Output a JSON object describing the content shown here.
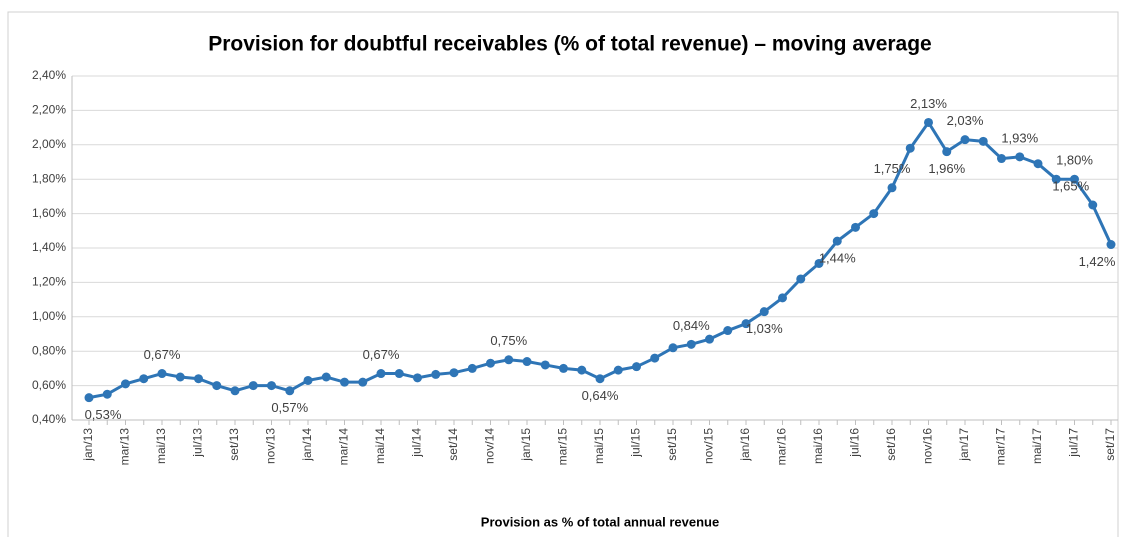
{
  "chart_data": {
    "type": "line",
    "title": "Provision for doubtful receivables (% of total revenue) – moving average",
    "x_label": "Provision as % of total annual revenue",
    "categories": [
      "jan/13",
      null,
      "mar/13",
      null,
      "mai/13",
      null,
      "jul/13",
      null,
      "set/13",
      null,
      "nov/13",
      null,
      "jan/14",
      null,
      "mar/14",
      null,
      "mai/14",
      null,
      "jul/14",
      null,
      "set/14",
      null,
      "nov/14",
      null,
      "jan/15",
      null,
      "mar/15",
      null,
      "mai/15",
      null,
      "jul/15",
      null,
      "set/15",
      null,
      "nov/15",
      null,
      "jan/16",
      null,
      "mar/16",
      null,
      "mai/16",
      null,
      "jul/16",
      null,
      "set/16",
      null,
      "nov/16",
      null,
      "jan/17",
      null,
      "mar/17",
      null,
      "mai/17",
      null,
      "jul/17",
      null,
      "set/17"
    ],
    "series": [
      {
        "name": "Provision",
        "color": "#2e75b6",
        "values": [
          0.53,
          0.55,
          0.61,
          0.64,
          0.67,
          0.65,
          0.64,
          0.6,
          0.57,
          0.6,
          0.6,
          0.57,
          0.63,
          0.65,
          0.62,
          0.62,
          0.67,
          0.67,
          0.645,
          0.665,
          0.675,
          0.7,
          0.73,
          0.75,
          0.74,
          0.72,
          0.7,
          0.69,
          0.64,
          0.69,
          0.71,
          0.76,
          0.82,
          0.84,
          0.87,
          0.92,
          0.96,
          1.03,
          1.11,
          1.22,
          1.31,
          1.44,
          1.52,
          1.6,
          1.75,
          1.98,
          2.13,
          1.96,
          2.03,
          2.02,
          1.92,
          1.93,
          1.89,
          1.8,
          1.8,
          1.65,
          1.42
        ],
        "value_labels": [
          "0,53%",
          null,
          null,
          null,
          "0,67%",
          null,
          null,
          null,
          null,
          null,
          null,
          "0,57%",
          null,
          null,
          null,
          null,
          "0,67%",
          null,
          null,
          null,
          null,
          null,
          null,
          "0,75%",
          null,
          null,
          null,
          null,
          "0,64%",
          null,
          null,
          null,
          null,
          "0,84%",
          null,
          null,
          null,
          "1,03%",
          null,
          null,
          null,
          "1,44%",
          null,
          null,
          "1,75%",
          null,
          "2,13%",
          "1,96%",
          "2,03%",
          null,
          null,
          "1,93%",
          null,
          null,
          "1,80%",
          "1,65%",
          "1,42%"
        ]
      }
    ],
    "ylim": [
      0.4,
      2.4
    ],
    "yticks": [
      {
        "value": 0.4,
        "label": "0,40%"
      },
      {
        "value": 0.6,
        "label": "0,60%"
      },
      {
        "value": 0.8,
        "label": "0,80%"
      },
      {
        "value": 1.0,
        "label": "1,00%"
      },
      {
        "value": 1.2,
        "label": "1,20%"
      },
      {
        "value": 1.4,
        "label": "1,40%"
      },
      {
        "value": 1.6,
        "label": "1,60%"
      },
      {
        "value": 1.8,
        "label": "1,80%"
      },
      {
        "value": 2.0,
        "label": "2,00%"
      },
      {
        "value": 2.2,
        "label": "2,20%"
      },
      {
        "value": 2.4,
        "label": "2,40%"
      }
    ],
    "grid": true
  }
}
